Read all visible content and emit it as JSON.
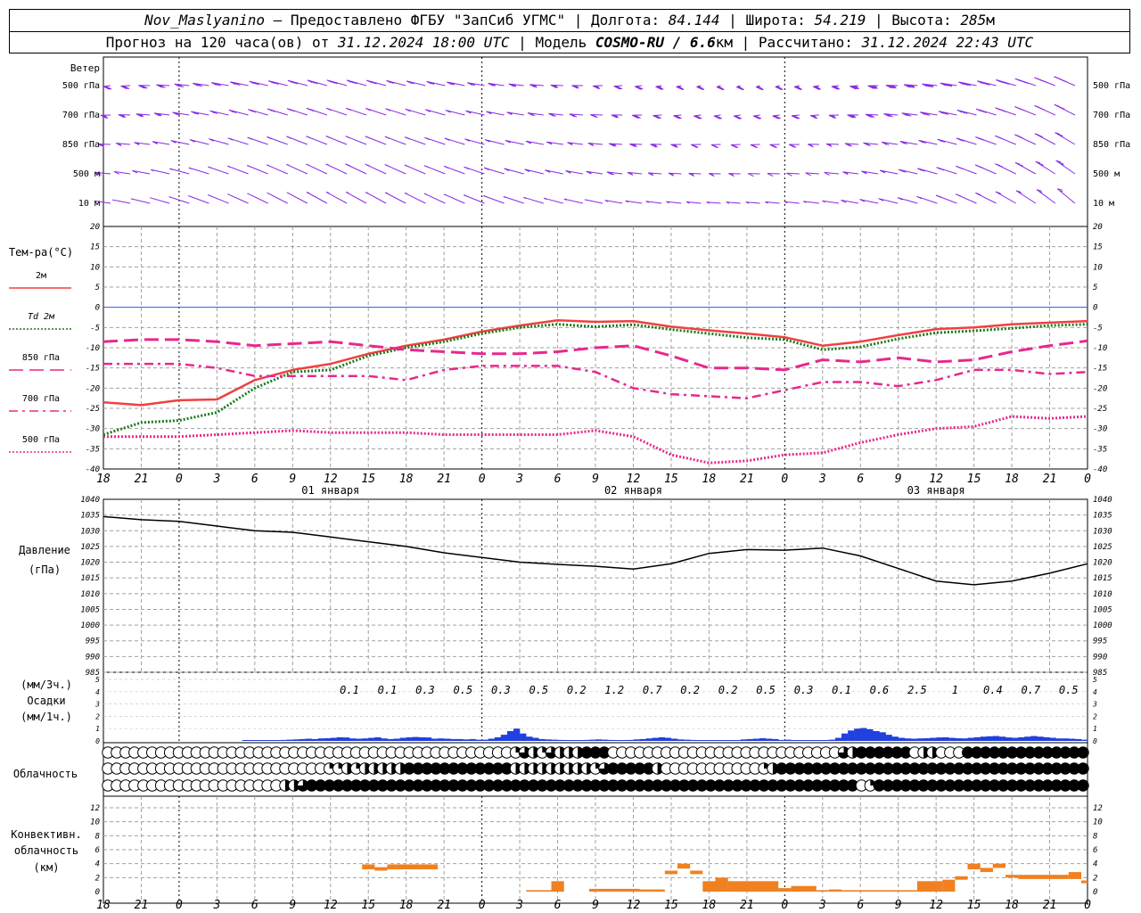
{
  "header": {
    "station": "Nov_Maslyanino",
    "provided_by": "Предоставлено ФГБУ \"ЗапСиб УГМС\"",
    "lon_label": "Долгота:",
    "lon": "84.144",
    "lat_label": "Широта:",
    "lat": "54.219",
    "alt_label": "Высота:",
    "alt": "285",
    "alt_unit": "м",
    "forecast_label": "Прогноз на 120 часа(ов) от",
    "forecast_from": "31.12.2024 18:00 UTC",
    "model_label": "Модель",
    "model": "COSMO-RU / 6.6",
    "model_unit": "км",
    "calc_label": "Рассчитано:",
    "calc_time": "31.12.2024 22:43 UTC"
  },
  "colors": {
    "wind": "#8a2be2",
    "t2m": "#f04040",
    "td2m": "#1a7a1a",
    "t850": "#e8288c",
    "t700": "#e8288c",
    "t500": "#e8288c",
    "zero_line": "#3050ff",
    "precip": "#2040e0",
    "convective": "#f08020",
    "pressure": "#000000"
  },
  "time_axis": {
    "hour_labels": [
      "18",
      "21",
      "0",
      "3",
      "6",
      "9",
      "12",
      "15",
      "18",
      "21",
      "0",
      "3",
      "6",
      "9",
      "12",
      "15",
      "18",
      "21",
      "0",
      "3",
      "6",
      "9",
      "12",
      "15",
      "18",
      "21",
      "0"
    ],
    "day_labels": [
      "01 января",
      "02 января",
      "03 января"
    ]
  },
  "wind_panel": {
    "title": "Ветер",
    "levels": [
      "500 гПа",
      "700 гПа",
      "850 гПа",
      "500 м",
      "10  м"
    ],
    "icon": "wind-barb-icon"
  },
  "temperature_panel": {
    "title": "Тем-ра(°C)",
    "legend": [
      {
        "label": "2м",
        "style": "solid",
        "color": "#f04040"
      },
      {
        "label": "Td  2м",
        "style": "dotted",
        "color": "#1a7a1a"
      },
      {
        "label": "850 гПа",
        "style": "long-dash",
        "color": "#e8288c"
      },
      {
        "label": "700 гПа",
        "style": "dash-dot",
        "color": "#e8288c"
      },
      {
        "label": "500 гПа",
        "style": "dotted",
        "color": "#e8288c"
      }
    ]
  },
  "pressure_panel": {
    "title": "Давление",
    "unit": "(гПа)"
  },
  "precip_panel": {
    "unit_3h": "(мм/3ч.)",
    "title": "Осадки",
    "unit_1h": "(мм/1ч.)",
    "totals_3h": [
      "0.1",
      "0.1",
      "0.3",
      "0.5",
      "0.3",
      "0.5",
      "0.2",
      "1.2",
      "0.7",
      "0.2",
      "0.2",
      "0.5",
      "0.3",
      "0.1",
      "0.6",
      "2.5",
      "1",
      "0.4",
      "0.7",
      "0.5"
    ]
  },
  "cloud_panel": {
    "title": "Облачность",
    "icon": "cloud-cover-circle-icon",
    "rows": [
      "000000000000000000000000000000000000000000000013213222444000000000000000000000000003244444402200044444444444444",
      "000000000000000000000000011212222244444444444422222222213444442000000000001244444444444444444444444444444444444",
      "000000000000000000002234444444444444444444444444444444444444444444444444444444444444401444444444444444444444444"
    ]
  },
  "convective_panel": {
    "title_line1": "Конвективн.",
    "title_line2": "облачность",
    "unit": "(км)"
  },
  "chart_data": [
    {
      "type": "line",
      "title": "Тем-ра(°C)",
      "x_unit": "hours since 31.12.2024 18:00 UTC",
      "xlim": [
        0,
        78
      ],
      "ylim": [
        -40,
        20
      ],
      "yticks": [
        20,
        15,
        10,
        5,
        0,
        -5,
        -10,
        -15,
        -20,
        -25,
        -30,
        -35,
        -40
      ],
      "grid": true,
      "series": [
        {
          "name": "2м",
          "x": [
            0,
            3,
            6,
            9,
            12,
            15,
            18,
            21,
            24,
            27,
            30,
            33,
            36,
            39,
            42,
            45,
            48,
            51,
            54,
            57,
            60,
            63,
            66,
            69,
            72,
            75,
            78
          ],
          "values": [
            -23.5,
            -24.2,
            -23,
            -22.8,
            -18,
            -15.5,
            -14,
            -11.5,
            -9.5,
            -8,
            -6,
            -4.5,
            -3.2,
            -3.6,
            -3.4,
            -4.8,
            -5.7,
            -6.5,
            -7.4,
            -9.5,
            -8.5,
            -6.9,
            -5.4,
            -5,
            -4.2,
            -3.8,
            -3.4
          ]
        },
        {
          "name": "Td  2м",
          "x": [
            0,
            3,
            6,
            9,
            12,
            15,
            18,
            21,
            24,
            27,
            30,
            33,
            36,
            39,
            42,
            45,
            48,
            51,
            54,
            57,
            60,
            63,
            66,
            69,
            72,
            75,
            78
          ],
          "values": [
            -31.5,
            -28.5,
            -28,
            -26,
            -20,
            -16,
            -15.5,
            -12,
            -10,
            -8.5,
            -6.5,
            -5,
            -4.2,
            -4.8,
            -4.3,
            -5.5,
            -6.5,
            -7.5,
            -8,
            -10.5,
            -9.8,
            -7.8,
            -6.3,
            -5.8,
            -5.2,
            -4.5,
            -4.2
          ]
        },
        {
          "name": "850 гПа",
          "x": [
            0,
            3,
            6,
            9,
            12,
            15,
            18,
            21,
            24,
            27,
            30,
            33,
            36,
            39,
            42,
            45,
            48,
            51,
            54,
            57,
            60,
            63,
            66,
            69,
            72,
            75,
            78
          ],
          "values": [
            -8.5,
            -8,
            -8,
            -8.5,
            -9.5,
            -9,
            -8.5,
            -9.5,
            -10.5,
            -11,
            -11.5,
            -11.5,
            -11,
            -10,
            -9.5,
            -12,
            -15,
            -15,
            -15.5,
            -13,
            -13.5,
            -12.5,
            -13.5,
            -13,
            -11,
            -9.5,
            -8.3
          ]
        },
        {
          "name": "700 гПа",
          "x": [
            0,
            3,
            6,
            9,
            12,
            15,
            18,
            21,
            24,
            27,
            30,
            33,
            36,
            39,
            42,
            45,
            48,
            51,
            54,
            57,
            60,
            63,
            66,
            69,
            72,
            75,
            78
          ],
          "values": [
            -14,
            -14,
            -14,
            -15,
            -17,
            -17,
            -17,
            -17,
            -18,
            -15.5,
            -14.5,
            -14.5,
            -14.5,
            -16,
            -20,
            -21.5,
            -22,
            -22.5,
            -20.5,
            -18.5,
            -18.5,
            -19.5,
            -18,
            -15.5,
            -15.5,
            -16.5,
            -16
          ]
        },
        {
          "name": "500 гПа",
          "x": [
            0,
            3,
            6,
            9,
            12,
            15,
            18,
            21,
            24,
            27,
            30,
            33,
            36,
            39,
            42,
            45,
            48,
            51,
            54,
            57,
            60,
            63,
            66,
            69,
            72,
            75,
            78
          ],
          "values": [
            -32,
            -32,
            -32,
            -31.5,
            -31,
            -30.5,
            -31,
            -31,
            -31,
            -31.5,
            -31.5,
            -31.5,
            -31.5,
            -30.5,
            -32,
            -36.5,
            -38.5,
            -38,
            -36.5,
            -36,
            -33.5,
            -31.5,
            -30,
            -29.5,
            -27,
            -27.5,
            -27
          ]
        }
      ]
    },
    {
      "type": "line",
      "title": "Давление",
      "ylabel": "(гПа)",
      "x_unit": "hours since 31.12.2024 18:00 UTC",
      "xlim": [
        0,
        78
      ],
      "ylim": [
        985,
        1040
      ],
      "yticks": [
        1040,
        1035,
        1030,
        1025,
        1020,
        1015,
        1010,
        1005,
        1000,
        995,
        990,
        985
      ],
      "grid": true,
      "series": [
        {
          "name": "",
          "x": [
            0,
            3,
            6,
            9,
            12,
            15,
            18,
            21,
            24,
            27,
            30,
            33,
            36,
            39,
            42,
            45,
            48,
            51,
            54,
            57,
            60,
            63,
            66,
            69,
            72,
            75,
            78
          ],
          "values": [
            1034.5,
            1033.5,
            1033,
            1031.5,
            1030,
            1029.5,
            1028,
            1026.5,
            1025,
            1023,
            1021.5,
            1020,
            1019.3,
            1018.7,
            1017.8,
            1019.5,
            1022.8,
            1024,
            1023.8,
            1024.5,
            1022,
            1018,
            1014,
            1012.8,
            1014,
            1016.5,
            1019.5
          ]
        }
      ]
    },
    {
      "type": "bar",
      "title": "Осадки",
      "ylabel": "(мм/1ч.)",
      "x_unit": "hours since 31.12.2024 18:00 UTC",
      "xlim": [
        0,
        78
      ],
      "ylim": [
        0,
        5
      ],
      "yticks": [
        5,
        4,
        3,
        2,
        1,
        0
      ],
      "hourly": [
        0,
        0,
        0,
        0,
        0,
        0,
        0,
        0,
        0,
        0,
        0,
        0,
        0,
        0,
        0,
        0,
        0,
        0,
        0,
        0,
        0,
        0,
        0.03,
        0.03,
        0.04,
        0.03,
        0.04,
        0.03,
        0.08,
        0.1,
        0.12,
        0.15,
        0.18,
        0.15,
        0.2,
        0.22,
        0.25,
        0.3,
        0.28,
        0.2,
        0.18,
        0.2,
        0.25,
        0.3,
        0.2,
        0.15,
        0.18,
        0.25,
        0.3,
        0.32,
        0.3,
        0.28,
        0.18,
        0.2,
        0.18,
        0.15,
        0.15,
        0.12,
        0.15,
        0.1,
        0.1,
        0.18,
        0.3,
        0.5,
        0.8,
        1.0,
        0.6,
        0.35,
        0.25,
        0.15,
        0.12,
        0.1,
        0.08,
        0.07,
        0.06,
        0.07,
        0.08,
        0.1,
        0.12,
        0.1,
        0.08,
        0.07,
        0.06,
        0.08,
        0.12,
        0.15,
        0.2,
        0.25,
        0.3,
        0.25,
        0.18,
        0.12,
        0.1,
        0.08,
        0.06,
        0.05,
        0.04,
        0.04,
        0.03,
        0.03,
        0.04,
        0.12,
        0.15,
        0.18,
        0.22,
        0.18,
        0.15,
        0.08,
        0.1,
        0.05,
        0.03,
        0.03,
        0.03,
        0.04,
        0.06,
        0.1,
        0.25,
        0.6,
        0.85,
        1.0,
        1.05,
        0.95,
        0.8,
        0.7,
        0.5,
        0.35,
        0.25,
        0.2,
        0.18,
        0.2,
        0.22,
        0.25,
        0.28,
        0.3,
        0.25,
        0.22,
        0.2,
        0.25,
        0.3,
        0.35,
        0.38,
        0.4,
        0.35,
        0.28,
        0.25,
        0.3,
        0.35,
        0.4,
        0.35,
        0.3,
        0.25,
        0.2,
        0.2,
        0.18,
        0.15,
        0.1
      ],
      "totals_3h": [
        "0.1",
        "0.1",
        "0.3",
        "0.5",
        "0.3",
        "0.5",
        "0.2",
        "1.2",
        "0.7",
        "0.2",
        "0.2",
        "0.5",
        "0.3",
        "0.1",
        "0.6",
        "2.5",
        "1",
        "0.4",
        "0.7",
        "0.5"
      ]
    },
    {
      "type": "bar",
      "title": "Конвективн. облачность",
      "ylabel": "(км)",
      "x_unit": "hours since 31.12.2024 18:00 UTC",
      "xlim": [
        0,
        78
      ],
      "ylim": [
        0,
        13
      ],
      "yticks": [
        12,
        10,
        8,
        6,
        4,
        2,
        0
      ],
      "segments": [
        {
          "x0": 20.5,
          "x1": 21.5,
          "bottom": 3.2,
          "top": 3.9
        },
        {
          "x0": 21.5,
          "x1": 22.5,
          "bottom": 3.0,
          "top": 3.5
        },
        {
          "x0": 22.5,
          "x1": 26.5,
          "bottom": 3.2,
          "top": 3.9
        },
        {
          "x0": 33.5,
          "x1": 35.5,
          "bottom": 0.0,
          "top": 0.2
        },
        {
          "x0": 35.5,
          "x1": 36.5,
          "bottom": 0.0,
          "top": 1.5
        },
        {
          "x0": 38.5,
          "x1": 42.5,
          "bottom": 0.0,
          "top": 0.4
        },
        {
          "x0": 42.5,
          "x1": 44.5,
          "bottom": 0.0,
          "top": 0.3
        },
        {
          "x0": 44.5,
          "x1": 45.5,
          "bottom": 2.5,
          "top": 3.0
        },
        {
          "x0": 45.5,
          "x1": 46.5,
          "bottom": 3.3,
          "top": 4.0
        },
        {
          "x0": 46.5,
          "x1": 47.5,
          "bottom": 2.5,
          "top": 3.0
        },
        {
          "x0": 47.5,
          "x1": 48.5,
          "bottom": 0.0,
          "top": 1.5
        },
        {
          "x0": 48.5,
          "x1": 49.5,
          "bottom": 0.0,
          "top": 2.0
        },
        {
          "x0": 49.5,
          "x1": 53.5,
          "bottom": 0.0,
          "top": 1.5
        },
        {
          "x0": 53.5,
          "x1": 54.5,
          "bottom": 0.0,
          "top": 0.5
        },
        {
          "x0": 54.5,
          "x1": 56.5,
          "bottom": 0.0,
          "top": 0.8
        },
        {
          "x0": 56.5,
          "x1": 57.5,
          "bottom": 0.0,
          "top": 0.2
        },
        {
          "x0": 57.5,
          "x1": 58.5,
          "bottom": 0.0,
          "top": 0.3
        },
        {
          "x0": 58.5,
          "x1": 64.5,
          "bottom": 0.0,
          "top": 0.2
        },
        {
          "x0": 64.5,
          "x1": 66.5,
          "bottom": 0.0,
          "top": 1.5
        },
        {
          "x0": 66.5,
          "x1": 67.5,
          "bottom": 0.0,
          "top": 1.7
        },
        {
          "x0": 67.5,
          "x1": 68.5,
          "bottom": 1.7,
          "top": 2.2
        },
        {
          "x0": 68.5,
          "x1": 69.5,
          "bottom": 3.2,
          "top": 4.0
        },
        {
          "x0": 69.5,
          "x1": 70.5,
          "bottom": 2.8,
          "top": 3.4
        },
        {
          "x0": 70.5,
          "x1": 71.5,
          "bottom": 3.4,
          "top": 4.0
        },
        {
          "x0": 71.5,
          "x1": 72.5,
          "bottom": 2.0,
          "top": 2.4
        },
        {
          "x0": 72.5,
          "x1": 76.5,
          "bottom": 1.8,
          "top": 2.4
        },
        {
          "x0": 76.5,
          "x1": 77.5,
          "bottom": 1.8,
          "top": 2.8
        },
        {
          "x0": 77.5,
          "x1": 78.0,
          "bottom": 1.2,
          "top": 1.6
        }
      ]
    }
  ]
}
